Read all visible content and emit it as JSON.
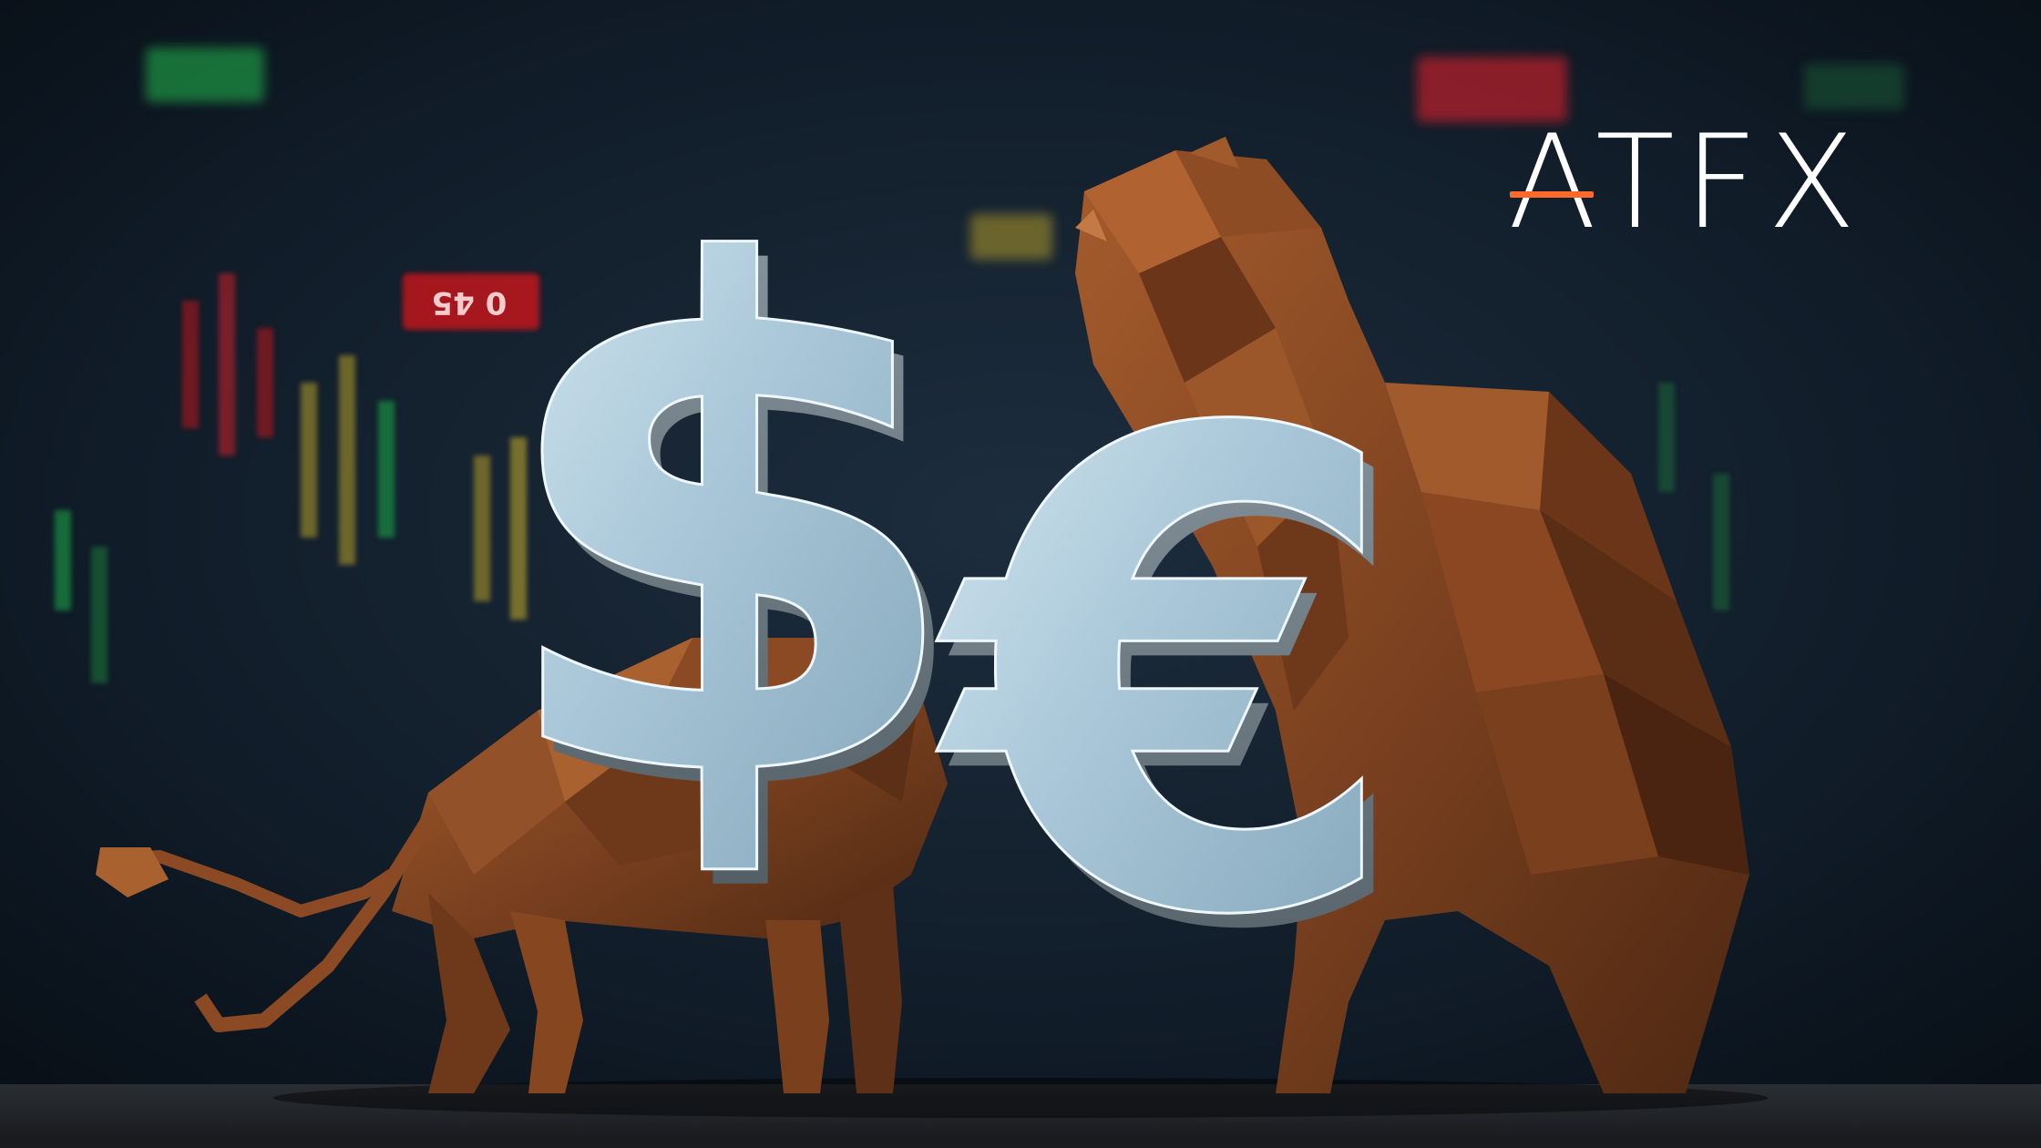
{
  "brand": {
    "name": "ATFX",
    "accent_color": "#ff6a2a"
  },
  "background": {
    "ticker_label": "0 45",
    "ticker_badge_color": "#c0141e",
    "up_color": "#1fae4a",
    "down_color": "#d0202a"
  },
  "artwork": {
    "symbols": [
      "dollar-sign-icon",
      "euro-sign-icon"
    ],
    "animals": [
      "bull-icon",
      "bear-icon"
    ],
    "metal_color": "#b9d3e2",
    "animal_color": "#8a4a24"
  }
}
